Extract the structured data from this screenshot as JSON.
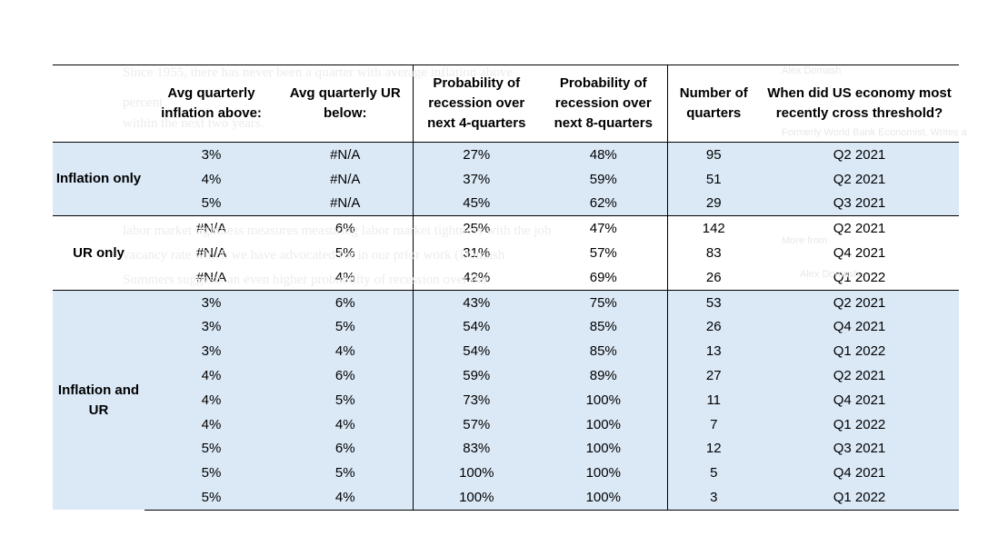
{
  "headers": {
    "group": "",
    "inflation": "Avg quarterly inflation above:",
    "ur": "Avg quarterly UR below:",
    "prob4": "Probability of recession over next 4-quarters",
    "prob8": "Probability of recession over next 8-quarters",
    "quarters": "Number of quarters",
    "cross": "When did US economy most recently cross threshold?"
  },
  "groups": [
    {
      "label": "Inflation only",
      "rows": [
        {
          "inflation": "3%",
          "ur": "#N/A",
          "prob4": "27%",
          "prob8": "48%",
          "quarters": "95",
          "cross": "Q2 2021"
        },
        {
          "inflation": "4%",
          "ur": "#N/A",
          "prob4": "37%",
          "prob8": "59%",
          "quarters": "51",
          "cross": "Q2 2021"
        },
        {
          "inflation": "5%",
          "ur": "#N/A",
          "prob4": "45%",
          "prob8": "62%",
          "quarters": "29",
          "cross": "Q3 2021"
        }
      ]
    },
    {
      "label": "UR only",
      "rows": [
        {
          "inflation": "#N/A",
          "ur": "6%",
          "prob4": "25%",
          "prob8": "47%",
          "quarters": "142",
          "cross": "Q2 2021"
        },
        {
          "inflation": "#N/A",
          "ur": "5%",
          "prob4": "31%",
          "prob8": "57%",
          "quarters": "83",
          "cross": "Q4 2021"
        },
        {
          "inflation": "#N/A",
          "ur": "4%",
          "prob4": "42%",
          "prob8": "69%",
          "quarters": "26",
          "cross": "Q1 2022"
        }
      ]
    },
    {
      "label": "Inflation and UR",
      "rows": [
        {
          "inflation": "3%",
          "ur": "6%",
          "prob4": "43%",
          "prob8": "75%",
          "quarters": "53",
          "cross": "Q2 2021"
        },
        {
          "inflation": "3%",
          "ur": "5%",
          "prob4": "54%",
          "prob8": "85%",
          "quarters": "26",
          "cross": "Q4 2021"
        },
        {
          "inflation": "3%",
          "ur": "4%",
          "prob4": "54%",
          "prob8": "85%",
          "quarters": "13",
          "cross": "Q1 2022"
        },
        {
          "inflation": "4%",
          "ur": "6%",
          "prob4": "59%",
          "prob8": "89%",
          "quarters": "27",
          "cross": "Q2 2021"
        },
        {
          "inflation": "4%",
          "ur": "5%",
          "prob4": "73%",
          "prob8": "100%",
          "quarters": "11",
          "cross": "Q4 2021"
        },
        {
          "inflation": "4%",
          "ur": "4%",
          "prob4": "57%",
          "prob8": "100%",
          "quarters": "7",
          "cross": "Q1 2022"
        },
        {
          "inflation": "5%",
          "ur": "6%",
          "prob4": "83%",
          "prob8": "100%",
          "quarters": "12",
          "cross": "Q3 2021"
        },
        {
          "inflation": "5%",
          "ur": "5%",
          "prob4": "100%",
          "prob8": "100%",
          "quarters": "5",
          "cross": "Q4 2021"
        },
        {
          "inflation": "5%",
          "ur": "4%",
          "prob4": "100%",
          "prob8": "100%",
          "quarters": "3",
          "cross": "Q1 2022"
        }
      ]
    }
  ],
  "background_text": {
    "line1": "Since 1955, there has never been a quarter with average inflation above",
    "line2": "percent",
    "line3": "within the next two years.",
    "line4": "labor market tightness measures measuring labor market tightness with the job",
    "line5": "vacancy rate which we have advocated for in our prior work (Domash",
    "line6": "Summers suggests an even higher probability of recession over the",
    "author": "Alex Domash",
    "role": "Formerly World Bank Economist. Writes a",
    "more": "More from",
    "sub": "Alex Domash"
  }
}
